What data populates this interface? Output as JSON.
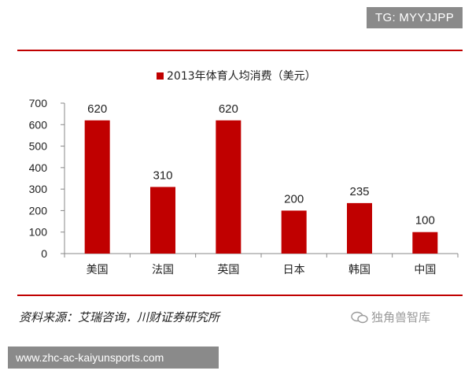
{
  "badge": "TG: MYYJJPP",
  "source_text": "资料来源：艾瑞咨询，川财证券研究所",
  "watermark_text": "独角兽智库",
  "url_text": "www.zhc-ac-kaiyunsports.com",
  "colors": {
    "accent": "#c00000",
    "bar": "#c00000",
    "badge_bg": "#8a8a8a"
  },
  "chart_data": {
    "type": "bar",
    "title": "",
    "xlabel": "",
    "ylabel": "",
    "categories": [
      "美国",
      "法国",
      "英国",
      "日本",
      "韩国",
      "中国"
    ],
    "series": [
      {
        "name": "2013年体育人均消费（美元）",
        "values": [
          620,
          310,
          620,
          200,
          235,
          100
        ]
      }
    ],
    "ylim": [
      0,
      700
    ],
    "yticks": [
      0,
      100,
      200,
      300,
      400,
      500,
      600,
      700
    ],
    "data_labels": true,
    "legend": "top-center",
    "grid": false
  }
}
